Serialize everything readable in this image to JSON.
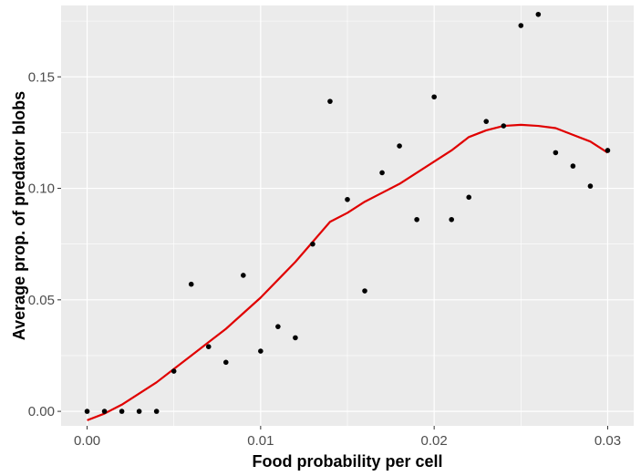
{
  "chart_data": {
    "type": "scatter",
    "title": "",
    "xlabel": "Food probability per cell",
    "ylabel": "Average prop. of predator blobs",
    "xlim": [
      -0.0015,
      0.0315
    ],
    "ylim": [
      -0.0065,
      0.182
    ],
    "x_ticks": [
      0.0,
      0.01,
      0.02,
      0.03
    ],
    "x_tick_labels": [
      "0.00",
      "0.01",
      "0.02",
      "0.03"
    ],
    "y_ticks": [
      0.0,
      0.05,
      0.1,
      0.15
    ],
    "y_tick_labels": [
      "0.00",
      "0.05",
      "0.10",
      "0.15"
    ],
    "grid": true,
    "legend": "none",
    "colors": {
      "panel_background": "#ebebeb",
      "grid": "#ffffff",
      "points": "#000000",
      "smooth_line": "#e00000"
    },
    "series": [
      {
        "kind": "points",
        "x": [
          0.0,
          0.001,
          0.002,
          0.003,
          0.004,
          0.005,
          0.006,
          0.007,
          0.008,
          0.009,
          0.01,
          0.011,
          0.012,
          0.013,
          0.014,
          0.015,
          0.016,
          0.017,
          0.018,
          0.019,
          0.02,
          0.021,
          0.022,
          0.023,
          0.024,
          0.025,
          0.026,
          0.027,
          0.028,
          0.029,
          0.03
        ],
        "y": [
          0.0,
          0.0,
          0.0,
          0.0,
          0.0,
          0.018,
          0.057,
          0.029,
          0.022,
          0.061,
          0.027,
          0.038,
          0.033,
          0.075,
          0.139,
          0.095,
          0.054,
          0.107,
          0.119,
          0.086,
          0.141,
          0.086,
          0.096,
          0.13,
          0.128,
          0.173,
          0.178,
          0.116,
          0.11,
          0.101,
          0.117
        ]
      },
      {
        "kind": "smooth",
        "x": [
          0.0,
          0.001,
          0.002,
          0.003,
          0.004,
          0.005,
          0.006,
          0.007,
          0.008,
          0.009,
          0.01,
          0.011,
          0.012,
          0.013,
          0.014,
          0.015,
          0.016,
          0.017,
          0.018,
          0.019,
          0.02,
          0.021,
          0.022,
          0.023,
          0.024,
          0.025,
          0.026,
          0.027,
          0.028,
          0.029,
          0.03
        ],
        "y": [
          -0.004,
          -0.001,
          0.003,
          0.008,
          0.013,
          0.019,
          0.025,
          0.031,
          0.037,
          0.044,
          0.051,
          0.059,
          0.067,
          0.076,
          0.085,
          0.089,
          0.094,
          0.098,
          0.102,
          0.107,
          0.112,
          0.117,
          0.123,
          0.126,
          0.128,
          0.1285,
          0.128,
          0.127,
          0.124,
          0.121,
          0.116
        ]
      }
    ]
  }
}
